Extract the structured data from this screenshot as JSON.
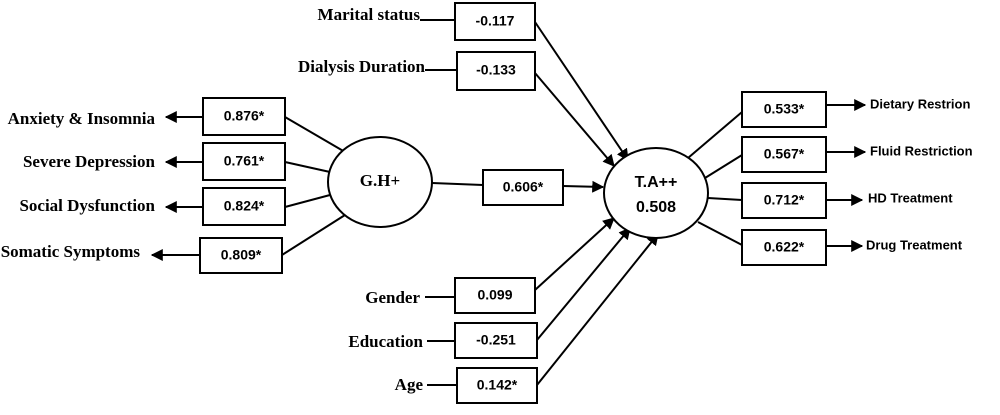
{
  "latent": {
    "gh": {
      "label": "G.H+"
    },
    "ta": {
      "label": "T.A++",
      "r2": 0.508
    }
  },
  "gh_indicators": [
    {
      "label": "Anxiety & Insomnia",
      "loading": "0.876*"
    },
    {
      "label": "Severe Depression",
      "loading": "0.761*"
    },
    {
      "label": "Social Dysfunction",
      "loading": "0.824*"
    },
    {
      "label": "Somatic Symptoms",
      "loading": "0.809*"
    }
  ],
  "predictors": [
    {
      "label": "Marital status",
      "coefficient": -0.117
    },
    {
      "label": "Dialysis Duration",
      "coefficient": -0.133
    },
    {
      "label": "Gender",
      "coefficient": 0.099
    },
    {
      "label": "Education",
      "coefficient": -0.251
    },
    {
      "label": "Age",
      "coefficient": "0.142*"
    }
  ],
  "structural": {
    "coefficient": "0.606*"
  },
  "ta_indicators": [
    {
      "label": "Dietary Restrion",
      "loading": "0.533*"
    },
    {
      "label": "Fluid Restriction",
      "loading": "0.567*"
    },
    {
      "label": "HD Treatment",
      "loading": "0.712*"
    },
    {
      "label": "Drug Treatment",
      "loading": "0.622*"
    }
  ]
}
